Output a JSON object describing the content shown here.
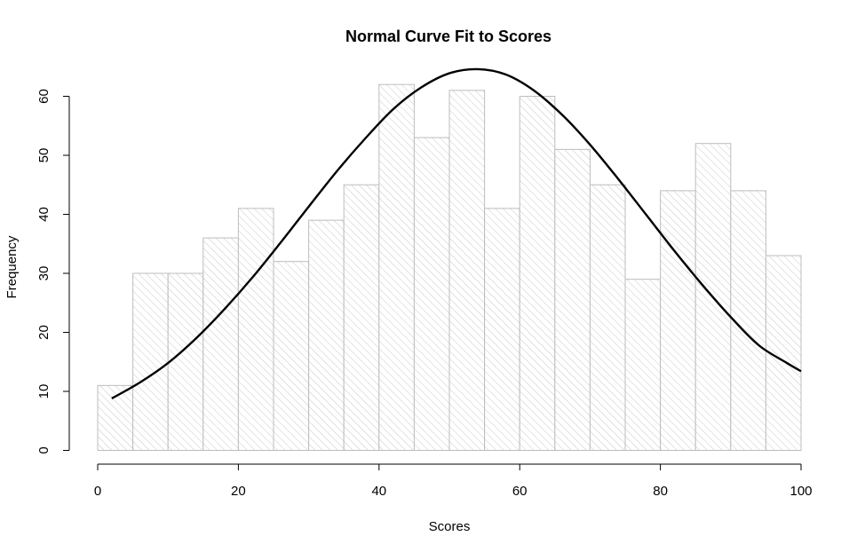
{
  "chart_data": {
    "type": "bar",
    "subtype": "histogram",
    "title": "Normal Curve Fit to Scores",
    "xlabel": "Scores",
    "ylabel": "Frequency",
    "bin_edges": [
      0,
      5,
      10,
      15,
      20,
      25,
      30,
      35,
      40,
      45,
      50,
      55,
      60,
      65,
      70,
      75,
      80,
      85,
      90,
      95,
      100
    ],
    "values": [
      11,
      30,
      30,
      36,
      41,
      32,
      39,
      45,
      62,
      53,
      61,
      41,
      60,
      51,
      45,
      29,
      44,
      52,
      44,
      33
    ],
    "xlim": [
      0,
      100
    ],
    "ylim": [
      0,
      65
    ],
    "xticks": [
      0,
      20,
      40,
      60,
      80,
      100
    ],
    "yticks": [
      0,
      10,
      20,
      30,
      40,
      50,
      60
    ],
    "overlay_curve": {
      "type": "line",
      "x": [
        2,
        6,
        10,
        14,
        18,
        22,
        26,
        30,
        34,
        38,
        42,
        46,
        50,
        54,
        58,
        62,
        66,
        70,
        74,
        78,
        82,
        86,
        90,
        94,
        98,
        100
      ],
      "y": [
        8.8,
        11.5,
        14.8,
        19.0,
        23.9,
        29.3,
        35.2,
        41.3,
        47.3,
        52.8,
        57.8,
        61.5,
        63.9,
        64.6,
        63.7,
        61.0,
        56.9,
        51.8,
        46.0,
        39.9,
        33.8,
        28.0,
        22.6,
        17.8,
        14.8,
        13.4
      ]
    },
    "grid": false,
    "fill_pattern": "diagonal hatch",
    "bar_color": "#bdbdbd",
    "curve_color": "#000000"
  }
}
